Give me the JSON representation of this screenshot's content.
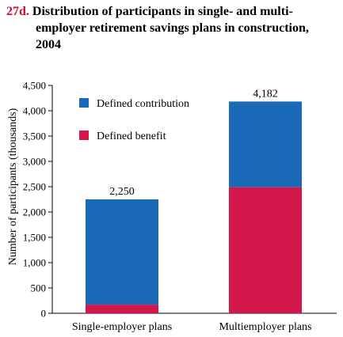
{
  "title": {
    "number": "27d.",
    "line1": "Distribution of participants in single- and multi-",
    "line2": "employer retirement savings plans in construction,",
    "line3": "2004"
  },
  "colors": {
    "defined_contribution": "#1b6ab8",
    "defined_benefit": "#d4174a",
    "title_number": "#c8102e"
  },
  "chart_data": {
    "type": "bar",
    "stacked": true,
    "categories": [
      "Single-employer plans",
      "Multiemployer plans"
    ],
    "series": [
      {
        "name": "Defined benefit",
        "values": [
          170,
          2490
        ]
      },
      {
        "name": "Defined contribution",
        "values": [
          2080,
          1692
        ]
      }
    ],
    "totals": [
      "2,250",
      "4,182"
    ],
    "total_values": [
      2250,
      4182
    ],
    "ylabel": "Number of participants (thousands)",
    "xlabel": "",
    "ylim": [
      0,
      4500
    ],
    "yticks": [
      "0",
      "500",
      "1,000",
      "1,500",
      "2,000",
      "2,500",
      "3,000",
      "3,500",
      "4,000",
      "4,500"
    ],
    "ytick_values": [
      0,
      500,
      1000,
      1500,
      2000,
      2500,
      3000,
      3500,
      4000,
      4500
    ],
    "grid": false,
    "legend_position": "top-left",
    "legend": [
      "Defined contribution",
      "Defined benefit"
    ]
  }
}
